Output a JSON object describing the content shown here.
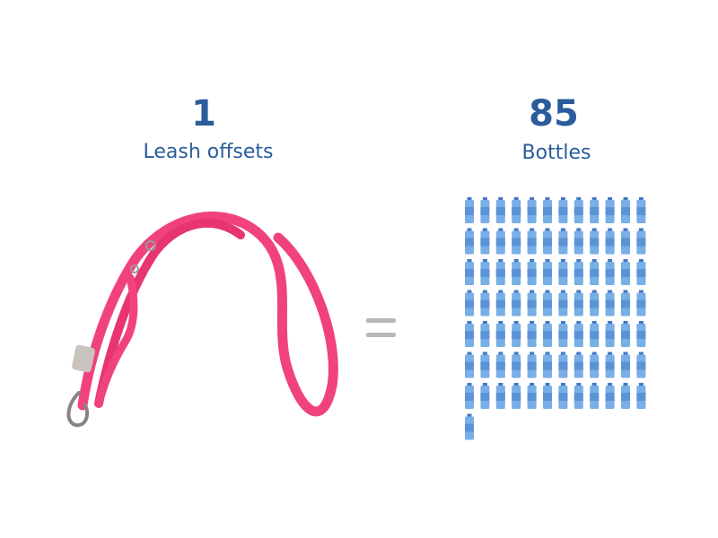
{
  "left": {
    "number": 1,
    "label": "Leash offsets"
  },
  "right": {
    "number": 85,
    "label": "Bottles"
  }
}
